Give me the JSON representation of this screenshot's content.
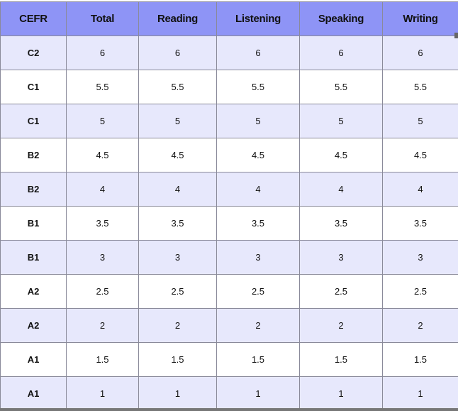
{
  "table": {
    "headers": [
      "CEFR",
      "Total",
      "Reading",
      "Listening",
      "Speaking",
      "Writing"
    ],
    "rows": [
      [
        "C2",
        "6",
        "6",
        "6",
        "6",
        "6"
      ],
      [
        "C1",
        "5.5",
        "5.5",
        "5.5",
        "5.5",
        "5.5"
      ],
      [
        "C1",
        "5",
        "5",
        "5",
        "5",
        "5"
      ],
      [
        "B2",
        "4.5",
        "4.5",
        "4.5",
        "4.5",
        "4.5"
      ],
      [
        "B2",
        "4",
        "4",
        "4",
        "4",
        "4"
      ],
      [
        "B1",
        "3.5",
        "3.5",
        "3.5",
        "3.5",
        "3.5"
      ],
      [
        "B1",
        "3",
        "3",
        "3",
        "3",
        "3"
      ],
      [
        "A2",
        "2.5",
        "2.5",
        "2.5",
        "2.5",
        "2.5"
      ],
      [
        "A2",
        "2",
        "2",
        "2",
        "2",
        "2"
      ],
      [
        "A1",
        "1.5",
        "1.5",
        "1.5",
        "1.5",
        "1.5"
      ],
      [
        "A1",
        "1",
        "1",
        "1",
        "1",
        "1"
      ]
    ]
  },
  "colors": {
    "header_bg": "#8e94f6",
    "alt_row_bg": "#e7e8fc",
    "border": "#8a8a9a"
  }
}
